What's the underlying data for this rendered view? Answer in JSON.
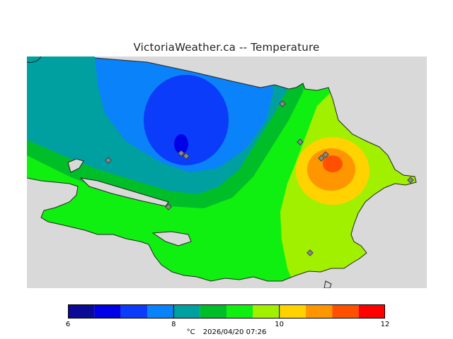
{
  "title": "VictoriaWeather.ca -- Temperature",
  "colors": {
    "land_water_bg": "#d9d9d9",
    "outline": "#222222",
    "station_marker": "#888888"
  },
  "color_scale": {
    "min": 6,
    "max": 12,
    "tick_labels": [
      "6",
      "8",
      "10",
      "12"
    ],
    "bins": [
      {
        "from": 6.0,
        "to": 6.5,
        "color": "#0a0a96"
      },
      {
        "from": 6.5,
        "to": 7.0,
        "color": "#0000e6"
      },
      {
        "from": 7.0,
        "to": 7.5,
        "color": "#0a3cfa"
      },
      {
        "from": 7.5,
        "to": 8.0,
        "color": "#0a82fa"
      },
      {
        "from": 8.0,
        "to": 8.5,
        "color": "#00a0a0"
      },
      {
        "from": 8.5,
        "to": 9.0,
        "color": "#00be28"
      },
      {
        "from": 9.0,
        "to": 9.5,
        "color": "#10f010"
      },
      {
        "from": 9.5,
        "to": 10.0,
        "color": "#a0f000"
      },
      {
        "from": 10.0,
        "to": 10.5,
        "color": "#ffd200"
      },
      {
        "from": 10.5,
        "to": 11.0,
        "color": "#ff9600"
      },
      {
        "from": 11.0,
        "to": 11.5,
        "color": "#ff5000"
      },
      {
        "from": 11.5,
        "to": 12.0,
        "color": "#ff0000"
      }
    ]
  },
  "caption": {
    "unit": "°C",
    "timestamp": "2026/04/20 07:26"
  }
}
